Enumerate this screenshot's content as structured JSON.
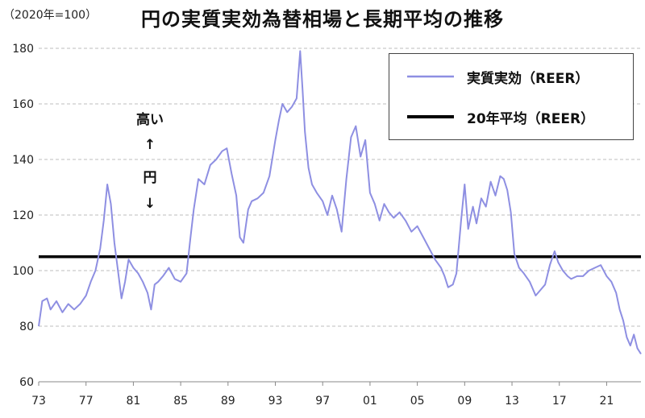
{
  "header": {
    "unit_label": "（2020年=100）",
    "title": "円の実質実効為替相場と長期平均の推移"
  },
  "annotation": {
    "high": "高い",
    "arrow_up": "↑",
    "yen": "円",
    "arrow_down": "↓"
  },
  "colors": {
    "reer_line": "#8e8fe2",
    "avg_line": "#000000",
    "grid": "#bdbdbd"
  },
  "chart_data": {
    "type": "line",
    "title": "円の実質実効為替相場と長期平均の推移",
    "ylabel": "（2020年=100）",
    "xlabel": "",
    "ylim": [
      60,
      180
    ],
    "xlim": [
      1973,
      2023.9
    ],
    "yticks": [
      60,
      80,
      100,
      120,
      140,
      160,
      180
    ],
    "xtick_values": [
      1973,
      1977,
      1981,
      1985,
      1989,
      1993,
      1997,
      2001,
      2005,
      2009,
      2013,
      2017,
      2021
    ],
    "xtick_labels": [
      "73",
      "77",
      "81",
      "85",
      "89",
      "93",
      "97",
      "01",
      "05",
      "09",
      "13",
      "17",
      "21"
    ],
    "grid": true,
    "legend_position": "top-right",
    "series": [
      {
        "name": "実質実効（REER）",
        "x": [
          1973.0,
          1973.3,
          1973.7,
          1974.0,
          1974.5,
          1975.0,
          1975.5,
          1976.0,
          1976.5,
          1977.0,
          1977.4,
          1977.8,
          1978.2,
          1978.5,
          1978.8,
          1979.1,
          1979.4,
          1979.7,
          1980.0,
          1980.3,
          1980.6,
          1981.0,
          1981.4,
          1981.8,
          1982.2,
          1982.5,
          1982.8,
          1983.1,
          1983.5,
          1984.0,
          1984.5,
          1985.0,
          1985.5,
          1985.8,
          1986.1,
          1986.5,
          1987.0,
          1987.5,
          1988.0,
          1988.5,
          1988.9,
          1989.3,
          1989.7,
          1990.0,
          1990.3,
          1990.7,
          1991.0,
          1991.5,
          1992.0,
          1992.5,
          1993.0,
          1993.3,
          1993.6,
          1994.0,
          1994.4,
          1994.8,
          1995.1,
          1995.3,
          1995.5,
          1995.8,
          1996.1,
          1996.5,
          1997.0,
          1997.4,
          1997.8,
          1998.2,
          1998.6,
          1999.0,
          1999.4,
          1999.8,
          2000.2,
          2000.6,
          2001.0,
          2001.4,
          2001.8,
          2002.2,
          2002.6,
          2003.0,
          2003.5,
          2004.0,
          2004.5,
          2005.0,
          2005.5,
          2006.0,
          2006.5,
          2007.0,
          2007.3,
          2007.6,
          2008.0,
          2008.3,
          2008.7,
          2009.0,
          2009.3,
          2009.7,
          2010.0,
          2010.4,
          2010.8,
          2011.2,
          2011.6,
          2012.0,
          2012.3,
          2012.6,
          2012.9,
          2013.2,
          2013.6,
          2014.0,
          2014.5,
          2015.0,
          2015.4,
          2015.8,
          2016.2,
          2016.6,
          2016.9,
          2017.3,
          2017.7,
          2018.0,
          2018.5,
          2019.0,
          2019.5,
          2020.0,
          2020.5,
          2021.0,
          2021.4,
          2021.8,
          2022.1,
          2022.4,
          2022.7,
          2023.0,
          2023.3,
          2023.6,
          2023.9
        ],
        "values": [
          80,
          89,
          90,
          86,
          89,
          85,
          88,
          86,
          88,
          91,
          96,
          100,
          108,
          118,
          131,
          124,
          110,
          100,
          90,
          96,
          104,
          101,
          99,
          96,
          92,
          86,
          95,
          96,
          98,
          101,
          97,
          96,
          99,
          111,
          122,
          133,
          131,
          138,
          140,
          143,
          144,
          135,
          127,
          112,
          110,
          122,
          125,
          126,
          128,
          134,
          147,
          154,
          160,
          157,
          159,
          162,
          179,
          165,
          150,
          137,
          131,
          128,
          125,
          120,
          127,
          122,
          114,
          133,
          148,
          152,
          141,
          147,
          128,
          124,
          118,
          124,
          121,
          119,
          121,
          118,
          114,
          116,
          112,
          108,
          104,
          101,
          98,
          94,
          95,
          99,
          118,
          131,
          115,
          123,
          117,
          126,
          123,
          132,
          127,
          134,
          133,
          129,
          121,
          106,
          101,
          99,
          96,
          91,
          93,
          95,
          102,
          107,
          103,
          100,
          98,
          97,
          98,
          98,
          100,
          101,
          102,
          98,
          96,
          92,
          86,
          82,
          76,
          73,
          77,
          72,
          70
        ]
      },
      {
        "name": "20年平均（REER）",
        "x": [
          1973.0,
          2023.9
        ],
        "values": [
          105,
          105
        ]
      }
    ]
  }
}
